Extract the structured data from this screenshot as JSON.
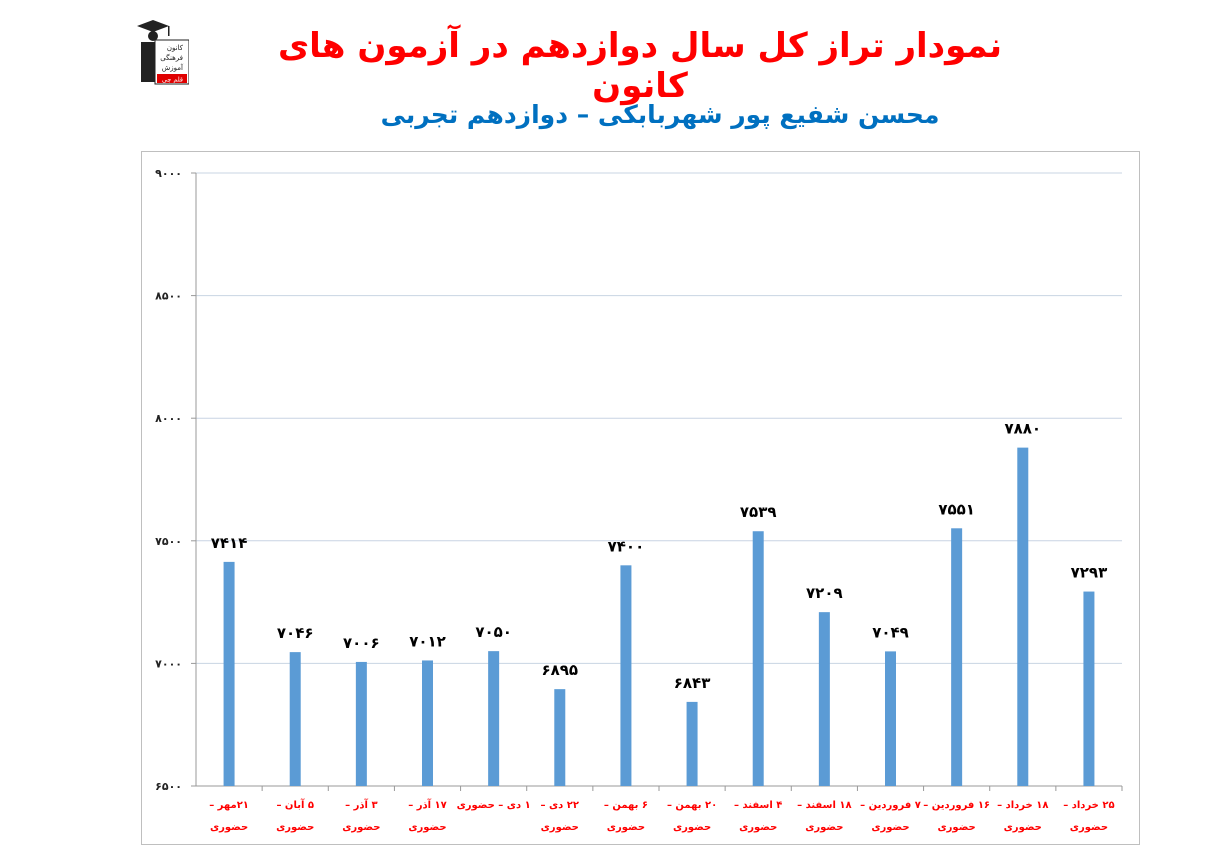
{
  "header": {
    "title": "نمودار تراز کل سال دوازدهم در آزمون های کانون",
    "subtitle": "محسن شفیع پور شهربابکی – دوازدهم تجربی",
    "logo_text": [
      "کانون",
      "فرهنگی",
      "آموزش",
      "قلم چی"
    ]
  },
  "colors": {
    "title": "#ff0000",
    "subtitle": "#0070c0",
    "bar": "#5b9bd5",
    "xlabel": "#ff0000",
    "grid": "#c8d4e3"
  },
  "chart_data": {
    "type": "bar",
    "ylim": [
      6500,
      9000
    ],
    "yticks": [
      6500,
      7000,
      7500,
      8000,
      8500,
      9000
    ],
    "ytick_labels": [
      "۶۵۰۰",
      "۷۰۰۰",
      "۷۵۰۰",
      "۸۰۰۰",
      "۸۵۰۰",
      "۹۰۰۰"
    ],
    "grid": true,
    "values": [
      7414,
      7046,
      7006,
      7012,
      7050,
      6895,
      7400,
      6843,
      7539,
      7209,
      7049,
      7551,
      7880,
      7293
    ],
    "value_labels": [
      "۷۴۱۴",
      "۷۰۴۶",
      "۷۰۰۶",
      "۷۰۱۲",
      "۷۰۵۰",
      "۶۸۹۵",
      "۷۴۰۰",
      "۶۸۴۳",
      "۷۵۳۹",
      "۷۲۰۹",
      "۷۰۴۹",
      "۷۵۵۱",
      "۷۸۸۰",
      "۷۲۹۳"
    ],
    "categories": [
      [
        "۲۱مهر –",
        "حضوری"
      ],
      [
        "۵ آبان –",
        "حضوری"
      ],
      [
        "۳ آذر –",
        "حضوری"
      ],
      [
        "۱۷ آذر –",
        "حضوری"
      ],
      [
        "۱ دی – حضوری",
        ""
      ],
      [
        "۲۲ دی –",
        "حضوری"
      ],
      [
        "۶ بهمن –",
        "حضوری"
      ],
      [
        "۲۰ بهمن –",
        "حضوری"
      ],
      [
        "۴ اسفند –",
        "حضوری"
      ],
      [
        "۱۸ اسفند –",
        "حضوری"
      ],
      [
        "۷ فروردین –",
        "حضوری"
      ],
      [
        "۱۶ فروردین –",
        "حضوری"
      ],
      [
        "۱۸ خرداد –",
        "حضوری"
      ],
      [
        "۲۵ خرداد –",
        "حضوری"
      ]
    ]
  }
}
